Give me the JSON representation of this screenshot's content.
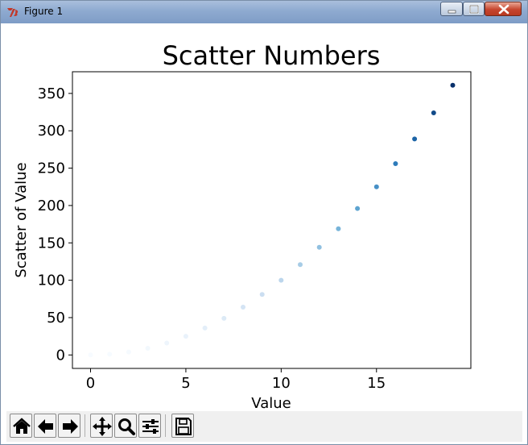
{
  "window": {
    "title": "Figure 1",
    "controls": [
      "minimize",
      "maximize",
      "close"
    ],
    "app_icon": "tk-feather-icon"
  },
  "chart_data": {
    "type": "scatter",
    "title": "Scatter Numbers",
    "xlabel": "Value",
    "ylabel": "Scatter of Value",
    "x": [
      0,
      1,
      2,
      3,
      4,
      5,
      6,
      7,
      8,
      9,
      10,
      11,
      12,
      13,
      14,
      15,
      16,
      17,
      18,
      19
    ],
    "y": [
      0,
      1,
      4,
      9,
      16,
      25,
      36,
      49,
      64,
      81,
      100,
      121,
      144,
      169,
      196,
      225,
      256,
      289,
      324,
      361
    ],
    "colormap": "Blues",
    "color_by": "y",
    "xlim": [
      -0.95,
      19.95
    ],
    "ylim": [
      -18,
      379
    ],
    "xticks": [
      0,
      5,
      10,
      15
    ],
    "xtick_labels": [
      "0",
      "5",
      "10",
      "15"
    ],
    "yticks": [
      0,
      50,
      100,
      150,
      200,
      250,
      300,
      350
    ],
    "ytick_labels": [
      "0",
      "50",
      "100",
      "150",
      "200",
      "250",
      "300",
      "350"
    ],
    "grid": false,
    "legend": "none"
  },
  "toolbar": {
    "buttons": [
      {
        "name": "home",
        "icon": "home-icon"
      },
      {
        "name": "back",
        "icon": "arrow-left-icon"
      },
      {
        "name": "forward",
        "icon": "arrow-right-icon"
      },
      {
        "name": "pan",
        "icon": "move-icon"
      },
      {
        "name": "zoom",
        "icon": "magnifier-icon"
      },
      {
        "name": "configure-subplots",
        "icon": "sliders-icon"
      },
      {
        "name": "save",
        "icon": "floppy-disk-icon"
      }
    ]
  }
}
